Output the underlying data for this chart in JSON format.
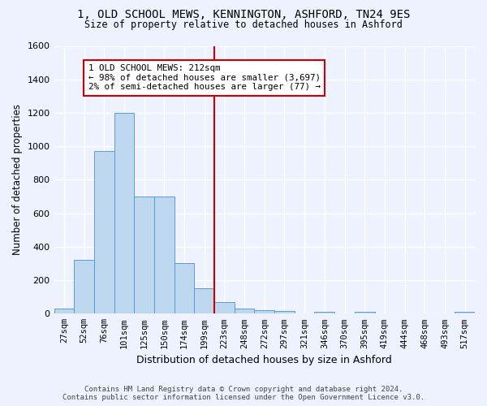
{
  "title_line1": "1, OLD SCHOOL MEWS, KENNINGTON, ASHFORD, TN24 9ES",
  "title_line2": "Size of property relative to detached houses in Ashford",
  "xlabel": "Distribution of detached houses by size in Ashford",
  "ylabel": "Number of detached properties",
  "bar_labels": [
    "27sqm",
    "52sqm",
    "76sqm",
    "101sqm",
    "125sqm",
    "150sqm",
    "174sqm",
    "199sqm",
    "223sqm",
    "248sqm",
    "272sqm",
    "297sqm",
    "321sqm",
    "346sqm",
    "370sqm",
    "395sqm",
    "419sqm",
    "444sqm",
    "468sqm",
    "493sqm",
    "517sqm"
  ],
  "bar_heights": [
    30,
    320,
    970,
    1200,
    700,
    700,
    300,
    150,
    70,
    30,
    20,
    15,
    0,
    10,
    0,
    10,
    0,
    0,
    0,
    0,
    10
  ],
  "bar_color": "#BDD7EE",
  "bar_edge_color": "#5B9BD5",
  "vline_color": "#CC0000",
  "vline_index": 8,
  "annotation_title": "1 OLD SCHOOL MEWS: 212sqm",
  "annotation_line1": "← 98% of detached houses are smaller (3,697)",
  "annotation_line2": "2% of semi-detached houses are larger (77) →",
  "annotation_box_edge_color": "#CC0000",
  "annotation_box_fill": "#FFFFFF",
  "ylim": [
    0,
    1600
  ],
  "yticks": [
    0,
    200,
    400,
    600,
    800,
    1000,
    1200,
    1400,
    1600
  ],
  "footer_line1": "Contains HM Land Registry data © Crown copyright and database right 2024.",
  "footer_line2": "Contains public sector information licensed under the Open Government Licence v3.0.",
  "background_color": "#EEF2FF",
  "grid_color": "#FFFFFF"
}
